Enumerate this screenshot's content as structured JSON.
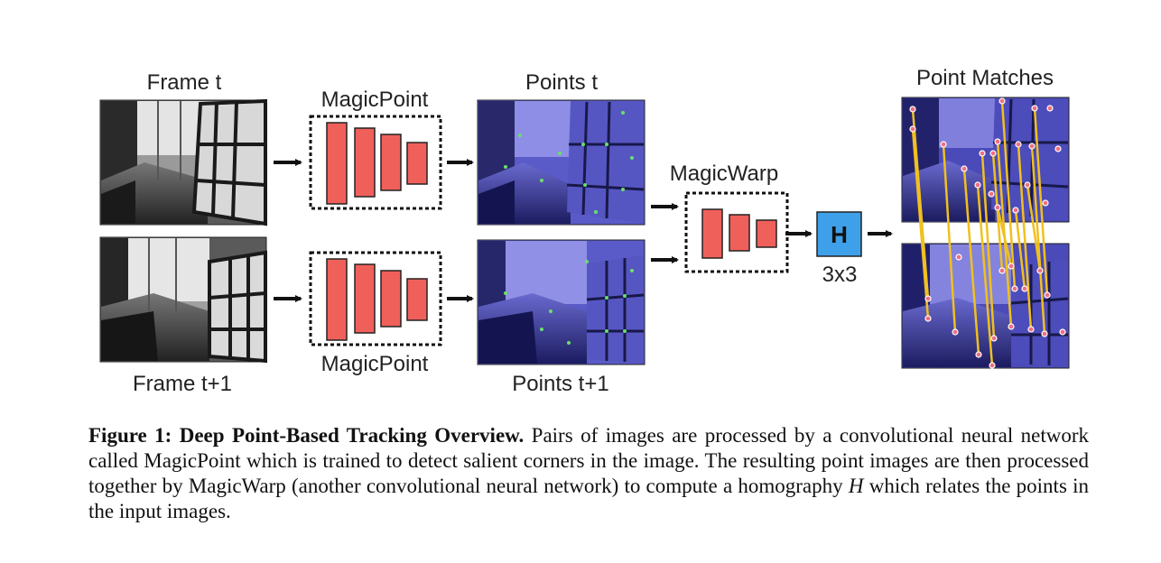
{
  "labels": {
    "frame_t": "Frame t",
    "frame_t1": "Frame t+1",
    "magicpoint_top": "MagicPoint",
    "magicpoint_bottom": "MagicPoint",
    "points_t": "Points t",
    "points_t1": "Points t+1",
    "magicwarp": "MagicWarp",
    "h_box": "H",
    "h_size": "3x3",
    "point_matches": "Point Matches"
  },
  "caption": {
    "title": "Figure 1: Deep Point-Based Tracking Overview.",
    "text_1": "Pairs of images are processed by a convolutional neural network called MagicPoint which is trained to detect salient corners in the image. The resulting point images are then processed together by MagicWarp (another convolutional neural network) to compute a homography",
    "math_h": "H",
    "text_2": "which relates the points in the input images."
  },
  "colors": {
    "net_block": "#f0605a",
    "h_box": "#3fa0ea",
    "point_overlay": "#5a5ac8",
    "match_line": "#f0c020",
    "match_point": "#f07080"
  }
}
